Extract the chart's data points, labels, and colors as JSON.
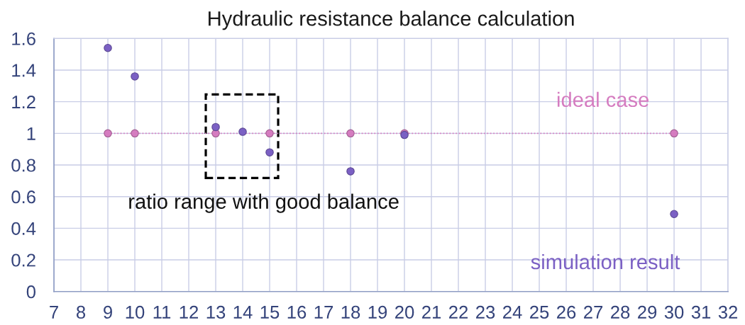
{
  "chart_data": {
    "type": "scatter",
    "title": "Hydraulic resistance balance calculation",
    "series": [
      {
        "name": "ideal case",
        "type": "line",
        "color": "#d57cc0",
        "x": [
          9,
          10,
          13,
          15,
          18,
          20,
          30
        ],
        "values": [
          1,
          1,
          1,
          1,
          1,
          1,
          1
        ]
      },
      {
        "name": "simulation result",
        "color": "#7b60c4",
        "x": [
          9,
          10,
          13,
          14,
          15,
          18,
          20,
          30
        ],
        "values": [
          1.54,
          1.36,
          1.04,
          1.01,
          0.88,
          0.76,
          0.99,
          0.49
        ]
      }
    ],
    "xlim": [
      7,
      32
    ],
    "xticks": [
      7,
      8,
      9,
      10,
      11,
      12,
      13,
      14,
      15,
      16,
      17,
      18,
      19,
      20,
      21,
      22,
      23,
      24,
      25,
      26,
      27,
      28,
      29,
      30,
      31,
      32
    ],
    "ylim": [
      0,
      1.6
    ],
    "yticks": [
      0,
      0.2,
      0.4,
      0.6,
      0.8,
      1,
      1.2,
      1.4,
      1.6
    ],
    "annotations": [
      {
        "text": "ratio range with good balance",
        "x": 14,
        "y": 1
      }
    ],
    "grid": true,
    "marker": "circle",
    "line_style": "dotted"
  }
}
